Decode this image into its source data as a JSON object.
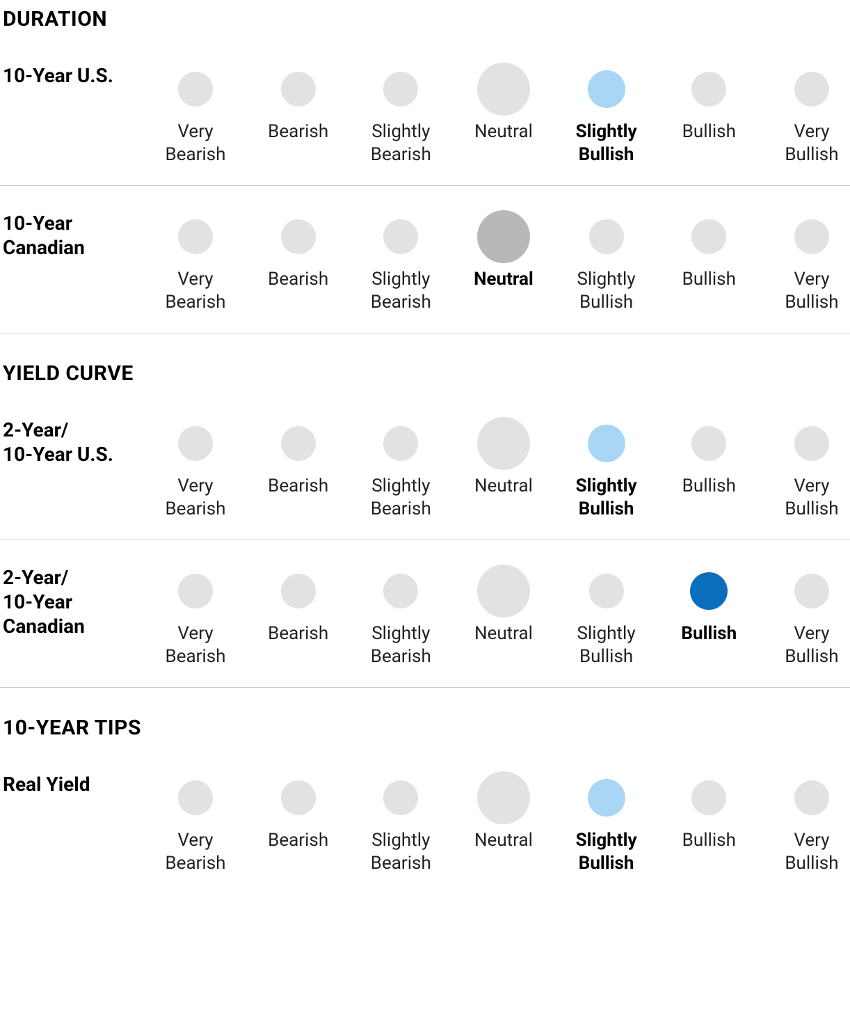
{
  "colors": {
    "inactive": "#e2e2e2",
    "neutral_selected": "#b8b8b8",
    "slightly_bullish_selected": "#a9d6f5",
    "bullish_selected": "#0a6ebd",
    "border": "#cccccc",
    "text": "#222222",
    "text_bold": "#000000",
    "background": "#ffffff"
  },
  "dot_sizes": [
    50,
    50,
    50,
    76,
    50,
    50,
    50
  ],
  "selected_dot_size": 54,
  "scale_labels": [
    "Very Bearish",
    "Bearish",
    "Slightly Bearish",
    "Neutral",
    "Slightly Bullish",
    "Bullish",
    "Very Bullish"
  ],
  "sections": [
    {
      "title": "DURATION",
      "rows": [
        {
          "label": "10-Year U.S.",
          "selected_index": 4,
          "selected_color": "#a9d6f5",
          "border": true
        },
        {
          "label": "10-Year Canadian",
          "selected_index": 3,
          "selected_color": "#b8b8b8",
          "border": true
        }
      ]
    },
    {
      "title": "YIELD CURVE",
      "rows": [
        {
          "label": "2-Year/ 10-Year U.S.",
          "selected_index": 4,
          "selected_color": "#a9d6f5",
          "border": true
        },
        {
          "label": "2-Year/ 10-Year Canadian",
          "selected_index": 5,
          "selected_color": "#0a6ebd",
          "border": true
        }
      ]
    },
    {
      "title": "10-YEAR TIPS",
      "rows": [
        {
          "label": "Real Yield",
          "selected_index": 4,
          "selected_color": "#a9d6f5",
          "border": false
        }
      ]
    }
  ]
}
